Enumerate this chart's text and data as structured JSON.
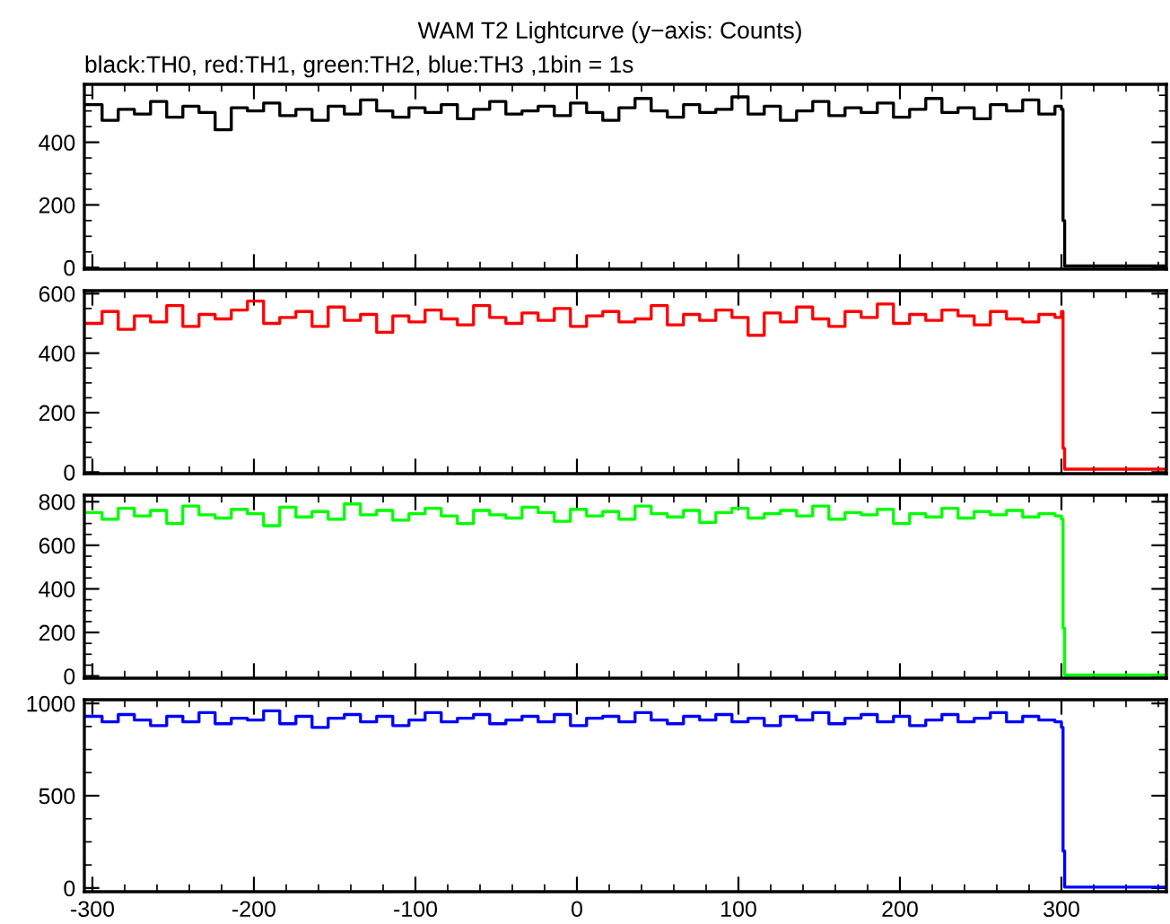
{
  "chart_data": [
    {
      "type": "step",
      "title": "WAM T2 Lightcurve (y−axis: Counts)",
      "subtitle": "black:TH0, red:TH1, green:TH2, blue:TH3 ,1bin = 1s",
      "x": [
        -304,
        -294,
        -284,
        -274,
        -264,
        -254,
        -244,
        -234,
        -224,
        -214,
        -204,
        -194,
        -184,
        -174,
        -164,
        -154,
        -144,
        -134,
        -124,
        -114,
        -104,
        -94,
        -84,
        -74,
        -64,
        -54,
        -44,
        -34,
        -24,
        -14,
        -4,
        6,
        16,
        26,
        36,
        46,
        56,
        66,
        76,
        86,
        96,
        106,
        116,
        126,
        136,
        146,
        156,
        166,
        176,
        186,
        196,
        206,
        216,
        226,
        236,
        246,
        256,
        266,
        276,
        286,
        296,
        300,
        301,
        302,
        365
      ],
      "series": [
        {
          "color": "#000000",
          "values": [
            520,
            470,
            505,
            490,
            530,
            480,
            515,
            495,
            440,
            510,
            500,
            525,
            485,
            505,
            470,
            515,
            490,
            535,
            500,
            480,
            510,
            495,
            520,
            475,
            505,
            530,
            490,
            500,
            515,
            485,
            525,
            495,
            470,
            510,
            540,
            500,
            480,
            520,
            495,
            505,
            545,
            490,
            515,
            470,
            500,
            530,
            485,
            510,
            495,
            525,
            480,
            505,
            540,
            495,
            510,
            475,
            520,
            500,
            535,
            490,
            515,
            505,
            150,
            5,
            5
          ]
        }
      ],
      "xlim": [
        -305,
        365
      ],
      "ylim": [
        -5,
        585
      ],
      "yticks": [
        {
          "value": 0,
          "label": "0"
        },
        200,
        400
      ],
      "xticks": [
        -300,
        -200,
        -100,
        0,
        100,
        200,
        300
      ],
      "tick_labels": "y"
    },
    {
      "type": "step",
      "x": [
        -304,
        -294,
        -284,
        -274,
        -264,
        -254,
        -244,
        -234,
        -224,
        -214,
        -204,
        -194,
        -184,
        -174,
        -164,
        -154,
        -144,
        -134,
        -124,
        -114,
        -104,
        -94,
        -84,
        -74,
        -64,
        -54,
        -44,
        -34,
        -24,
        -14,
        -4,
        6,
        16,
        26,
        36,
        46,
        56,
        66,
        76,
        86,
        96,
        106,
        116,
        126,
        136,
        146,
        156,
        166,
        176,
        186,
        196,
        206,
        216,
        226,
        236,
        246,
        256,
        266,
        276,
        286,
        296,
        300,
        301,
        302,
        365
      ],
      "series": [
        {
          "color": "#ff0000",
          "values": [
            500,
            540,
            480,
            525,
            505,
            560,
            490,
            530,
            515,
            545,
            575,
            500,
            520,
            540,
            490,
            555,
            510,
            530,
            470,
            525,
            505,
            545,
            515,
            495,
            560,
            520,
            500,
            535,
            510,
            550,
            490,
            525,
            540,
            505,
            515,
            560,
            495,
            530,
            510,
            545,
            520,
            460,
            535,
            505,
            555,
            515,
            490,
            540,
            520,
            565,
            500,
            530,
            510,
            545,
            525,
            495,
            540,
            515,
            505,
            530,
            520,
            540,
            80,
            10,
            10
          ]
        }
      ],
      "xlim": [
        -305,
        365
      ],
      "ylim": [
        -5,
        610
      ],
      "yticks": [
        0,
        200,
        400,
        600
      ],
      "xticks": [
        -300,
        -200,
        -100,
        0,
        100,
        200,
        300
      ],
      "tick_labels": "y"
    },
    {
      "type": "step",
      "x": [
        -304,
        -294,
        -284,
        -274,
        -264,
        -254,
        -244,
        -234,
        -224,
        -214,
        -204,
        -194,
        -184,
        -174,
        -164,
        -154,
        -144,
        -134,
        -124,
        -114,
        -104,
        -94,
        -84,
        -74,
        -64,
        -54,
        -44,
        -34,
        -24,
        -14,
        -4,
        6,
        16,
        26,
        36,
        46,
        56,
        66,
        76,
        86,
        96,
        106,
        116,
        126,
        136,
        146,
        156,
        166,
        176,
        186,
        196,
        206,
        216,
        226,
        236,
        246,
        256,
        266,
        276,
        286,
        296,
        300,
        301,
        302,
        365
      ],
      "series": [
        {
          "color": "#00ff00",
          "values": [
            750,
            720,
            770,
            735,
            760,
            700,
            780,
            740,
            725,
            765,
            745,
            690,
            775,
            730,
            755,
            720,
            790,
            740,
            760,
            715,
            745,
            770,
            735,
            700,
            760,
            740,
            725,
            775,
            750,
            710,
            765,
            735,
            755,
            720,
            780,
            745,
            730,
            760,
            705,
            750,
            770,
            725,
            745,
            760,
            735,
            780,
            720,
            750,
            740,
            765,
            700,
            745,
            730,
            770,
            725,
            755,
            740,
            760,
            730,
            745,
            735,
            720,
            220,
            5,
            5
          ]
        }
      ],
      "xlim": [
        -305,
        365
      ],
      "ylim": [
        -10,
        830
      ],
      "yticks": [
        0,
        200,
        400,
        600,
        800
      ],
      "xticks": [
        -300,
        -200,
        -100,
        0,
        100,
        200,
        300
      ],
      "tick_labels": "y"
    },
    {
      "type": "step",
      "x": [
        -304,
        -294,
        -284,
        -274,
        -264,
        -254,
        -244,
        -234,
        -224,
        -214,
        -204,
        -194,
        -184,
        -174,
        -164,
        -154,
        -144,
        -134,
        -124,
        -114,
        -104,
        -94,
        -84,
        -74,
        -64,
        -54,
        -44,
        -34,
        -24,
        -14,
        -4,
        6,
        16,
        26,
        36,
        46,
        56,
        66,
        76,
        86,
        96,
        106,
        116,
        126,
        136,
        146,
        156,
        166,
        176,
        186,
        196,
        206,
        216,
        226,
        236,
        246,
        256,
        266,
        276,
        286,
        296,
        300,
        301,
        302,
        365
      ],
      "series": [
        {
          "color": "#0000ff",
          "values": [
            930,
            900,
            940,
            910,
            880,
            930,
            900,
            950,
            890,
            920,
            910,
            960,
            890,
            930,
            870,
            920,
            940,
            900,
            930,
            880,
            910,
            950,
            900,
            920,
            940,
            890,
            910,
            930,
            900,
            940,
            880,
            920,
            930,
            900,
            950,
            910,
            890,
            930,
            910,
            940,
            900,
            920,
            880,
            930,
            910,
            950,
            890,
            920,
            940,
            900,
            930,
            880,
            910,
            940,
            900,
            920,
            950,
            900,
            930,
            910,
            900,
            870,
            200,
            5,
            5
          ]
        }
      ],
      "xlim": [
        -305,
        365
      ],
      "ylim": [
        -20,
        1020
      ],
      "yticks": [
        0,
        500,
        1000
      ],
      "xticks": [
        -300,
        -200,
        -100,
        0,
        100,
        200,
        300
      ]
    }
  ]
}
